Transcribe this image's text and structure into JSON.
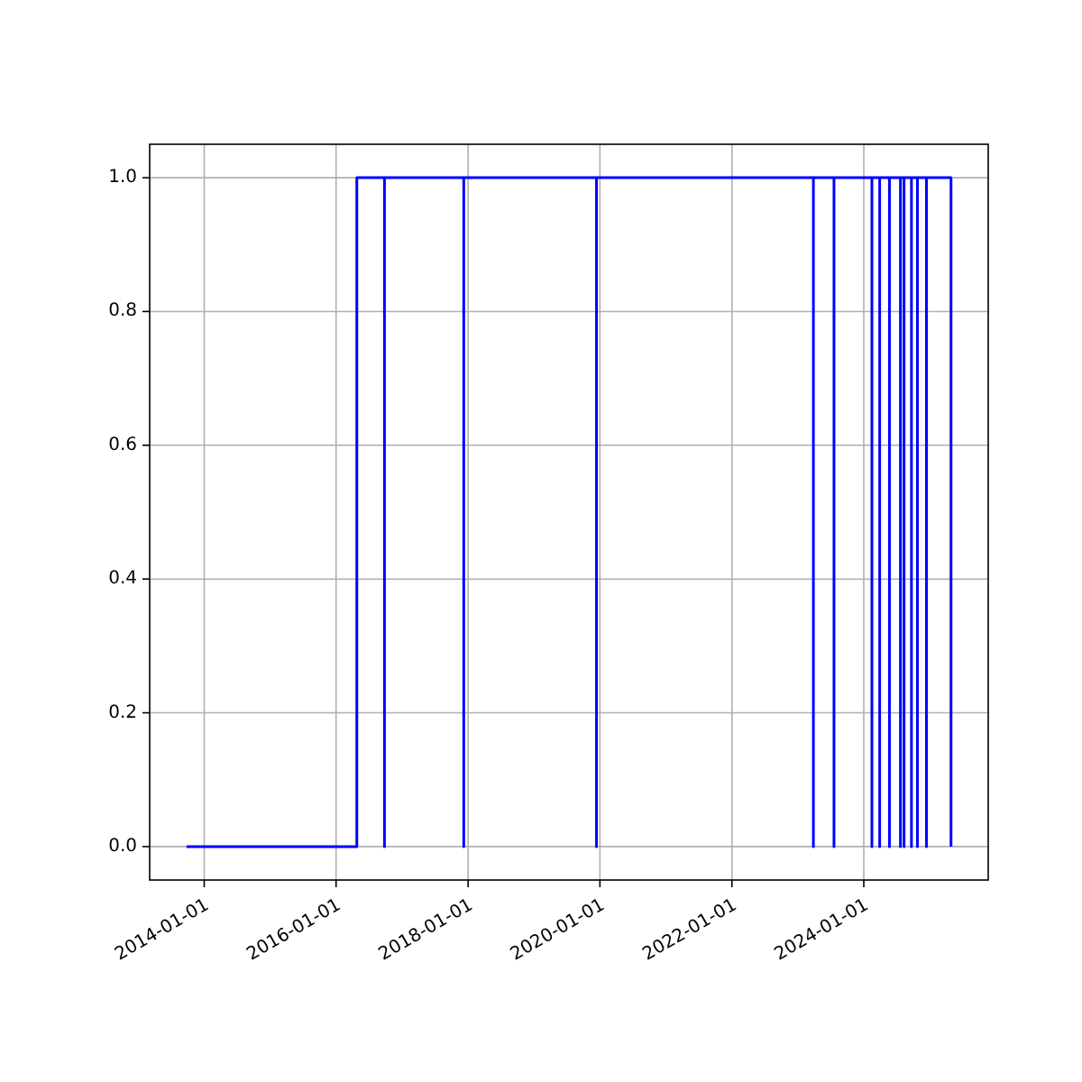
{
  "chart_data": {
    "type": "line",
    "x": [
      "2013-09-25",
      "2016-04-25",
      "2016-04-25",
      "2016-09-25",
      "2016-09-25",
      "2016-09-25",
      "2017-12-08",
      "2017-12-08",
      "2017-12-08",
      "2019-12-13",
      "2019-12-13",
      "2019-12-13",
      "2023-03-28",
      "2023-03-28",
      "2023-03-28",
      "2023-07-20",
      "2023-07-20",
      "2023-07-20",
      "2024-02-15",
      "2024-02-15",
      "2024-02-15",
      "2024-03-29",
      "2024-03-29",
      "2024-03-29",
      "2024-05-22",
      "2024-05-22",
      "2024-05-22",
      "2024-07-22",
      "2024-07-22",
      "2024-07-22",
      "2024-08-11",
      "2024-08-11",
      "2024-08-11",
      "2024-09-21",
      "2024-09-21",
      "2024-09-21",
      "2024-10-24",
      "2024-10-24",
      "2024-10-24",
      "2024-12-13",
      "2024-12-13",
      "2024-12-13",
      "2025-04-28",
      "2025-04-28"
    ],
    "series": [
      {
        "color": "#0000ff",
        "values": [
          0,
          0,
          1,
          1,
          0,
          1,
          1,
          0,
          1,
          1,
          0,
          1,
          1,
          0,
          1,
          1,
          0,
          1,
          1,
          0,
          1,
          1,
          0,
          1,
          1,
          0,
          1,
          1,
          0,
          1,
          1,
          0,
          1,
          1,
          0,
          1,
          1,
          0,
          1,
          1,
          0,
          1,
          1,
          0
        ]
      }
    ],
    "xlim": [
      "2013-03-05",
      "2025-11-20"
    ],
    "xticks": [
      {
        "value": "2014-01-01",
        "label": "2014-01-01"
      },
      {
        "value": "2016-01-01",
        "label": "2016-01-01"
      },
      {
        "value": "2018-01-01",
        "label": "2018-01-01"
      },
      {
        "value": "2020-01-01",
        "label": "2020-01-01"
      },
      {
        "value": "2022-01-01",
        "label": "2022-01-01"
      },
      {
        "value": "2024-01-01",
        "label": "2024-01-01"
      }
    ],
    "ylim": [
      -0.05,
      1.05
    ],
    "yticks": [
      {
        "value": 0,
        "label": "0.0"
      },
      {
        "value": 0.2,
        "label": "0.2"
      },
      {
        "value": 0.4,
        "label": "0.4"
      },
      {
        "value": 0.6,
        "label": "0.6"
      },
      {
        "value": 0.8,
        "label": "0.8"
      },
      {
        "value": 1,
        "label": "1.0"
      }
    ],
    "grid": true,
    "line_style": "solid",
    "marker": "none"
  }
}
